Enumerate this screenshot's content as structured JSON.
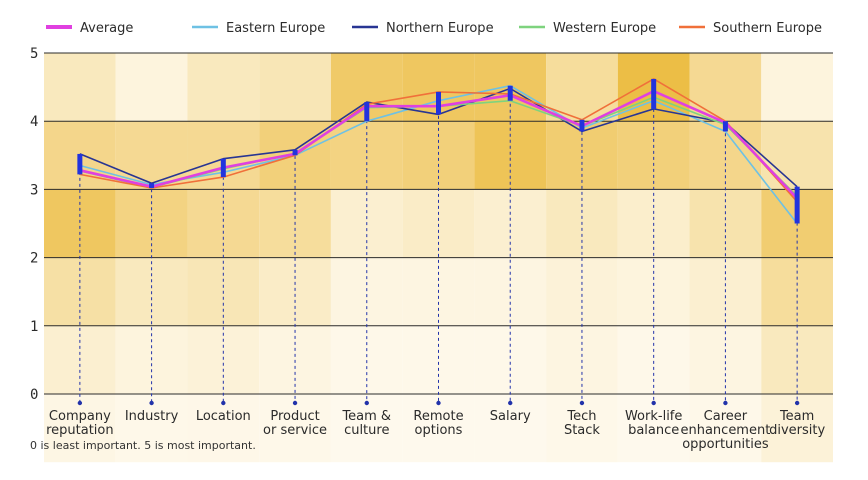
{
  "footnote": "0 is least important. 5 is most important.",
  "chart_data": {
    "type": "line",
    "title": "",
    "xlabel": "",
    "ylabel": "",
    "ylim": [
      0,
      5
    ],
    "yticks": [
      "0",
      "1",
      "2",
      "3",
      "4",
      "5"
    ],
    "grid": true,
    "legend_position": "top",
    "categories": [
      [
        "Company",
        "reputation"
      ],
      [
        "Industry"
      ],
      [
        "Location"
      ],
      [
        "Product",
        "or service"
      ],
      [
        "Team &",
        "culture"
      ],
      [
        "Remote",
        "options"
      ],
      [
        "Salary"
      ],
      [
        "Tech",
        "Stack"
      ],
      [
        "Work-life",
        "balance"
      ],
      [
        "Career",
        "enhancement",
        "opportunities"
      ],
      [
        "Team",
        "diversity"
      ]
    ],
    "series": [
      {
        "name": "Average",
        "color": "#e040e0",
        "values": [
          3.28,
          3.04,
          3.32,
          3.52,
          4.22,
          4.22,
          4.38,
          3.93,
          4.44,
          3.98,
          2.87
        ]
      },
      {
        "name": "Eastern Europe",
        "color": "#6ec1e4",
        "values": [
          3.35,
          3.07,
          3.25,
          3.5,
          4.0,
          4.3,
          4.52,
          3.9,
          4.3,
          3.85,
          2.5
        ]
      },
      {
        "name": "Northern Europe",
        "color": "#283593",
        "values": [
          3.52,
          3.09,
          3.45,
          3.58,
          4.28,
          4.1,
          4.48,
          3.85,
          4.18,
          3.98,
          3.04
        ]
      },
      {
        "name": "Western Europe",
        "color": "#7ed37e",
        "values": [
          3.27,
          3.03,
          3.3,
          3.53,
          4.2,
          4.22,
          4.3,
          3.93,
          4.35,
          3.95,
          2.9
        ]
      },
      {
        "name": "Southern Europe",
        "color": "#f0703a",
        "values": [
          3.22,
          3.02,
          3.18,
          3.5,
          4.25,
          4.43,
          4.4,
          4.02,
          4.62,
          4.0,
          2.82
        ]
      }
    ],
    "heatmap_intensity": [
      [
        0.3,
        0.6,
        0.85,
        0.45,
        0.2,
        0.08
      ],
      [
        0.12,
        0.55,
        0.65,
        0.3,
        0.12,
        0.05
      ],
      [
        0.3,
        0.55,
        0.55,
        0.35,
        0.15,
        0.06
      ],
      [
        0.35,
        0.7,
        0.5,
        0.25,
        0.1,
        0.05
      ],
      [
        0.8,
        0.65,
        0.2,
        0.1,
        0.05,
        0.03
      ],
      [
        0.85,
        0.7,
        0.25,
        0.1,
        0.05,
        0.03
      ],
      [
        0.85,
        0.9,
        0.2,
        0.1,
        0.05,
        0.03
      ],
      [
        0.5,
        0.75,
        0.3,
        0.15,
        0.1,
        0.05
      ],
      [
        1.0,
        0.7,
        0.22,
        0.12,
        0.05,
        0.03
      ],
      [
        0.55,
        0.6,
        0.4,
        0.2,
        0.1,
        0.05
      ],
      [
        0.12,
        0.4,
        0.75,
        0.5,
        0.3,
        0.15
      ]
    ]
  }
}
